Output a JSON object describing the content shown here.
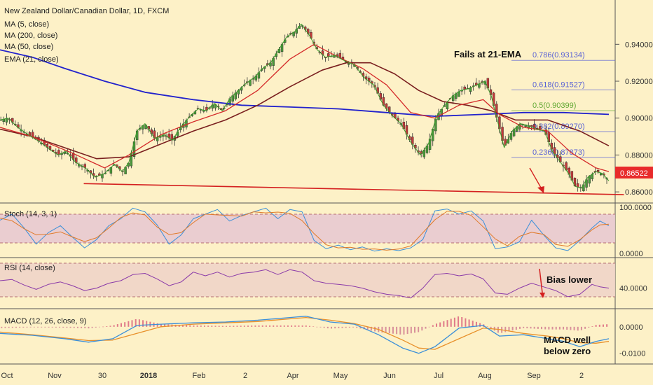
{
  "chart_data": {
    "type": "line",
    "title": "New Zealand Dollar/Canadian Dollar, 1D, FXCM",
    "x_ticks": [
      "Oct",
      "Nov",
      "30",
      "2018",
      "Feb",
      "2",
      "Apr",
      "May",
      "Jun",
      "Jul",
      "Aug",
      "Sep",
      "2"
    ],
    "price_panel": {
      "y_ticks": [
        "0.94000",
        "0.92000",
        "0.90000",
        "0.88000",
        "0.86000"
      ],
      "ylim": [
        0.8555,
        0.9625
      ],
      "last_price": "0.86522",
      "legend": [
        "MA (5, close)",
        "MA (200, close)",
        "MA (50, close)",
        "EMA (21, close)"
      ],
      "price_series": [
        [
          0,
          0.899
        ],
        [
          10,
          0.9
        ],
        [
          22,
          0.895
        ],
        [
          35,
          0.891
        ],
        [
          50,
          0.887
        ],
        [
          62,
          0.883
        ],
        [
          72,
          0.88
        ],
        [
          82,
          0.882
        ],
        [
          94,
          0.876
        ],
        [
          106,
          0.873
        ],
        [
          118,
          0.868
        ],
        [
          130,
          0.87
        ],
        [
          142,
          0.875
        ],
        [
          152,
          0.871
        ],
        [
          160,
          0.876
        ],
        [
          170,
          0.893
        ],
        [
          180,
          0.897
        ],
        [
          192,
          0.889
        ],
        [
          204,
          0.891
        ],
        [
          214,
          0.888
        ],
        [
          224,
          0.895
        ],
        [
          236,
          0.901
        ],
        [
          246,
          0.905
        ],
        [
          256,
          0.904
        ],
        [
          266,
          0.908
        ],
        [
          276,
          0.904
        ],
        [
          286,
          0.911
        ],
        [
          296,
          0.915
        ],
        [
          306,
          0.919
        ],
        [
          316,
          0.922
        ],
        [
          326,
          0.927
        ],
        [
          336,
          0.93
        ],
        [
          346,
          0.937
        ],
        [
          356,
          0.944
        ],
        [
          366,
          0.947
        ],
        [
          374,
          0.951
        ],
        [
          384,
          0.945
        ],
        [
          394,
          0.937
        ],
        [
          404,
          0.933
        ],
        [
          416,
          0.934
        ],
        [
          428,
          0.931
        ],
        [
          440,
          0.929
        ],
        [
          452,
          0.922
        ],
        [
          464,
          0.918
        ],
        [
          476,
          0.907
        ],
        [
          488,
          0.901
        ],
        [
          498,
          0.897
        ],
        [
          510,
          0.887
        ],
        [
          522,
          0.88
        ],
        [
          532,
          0.886
        ],
        [
          542,
          0.901
        ],
        [
          552,
          0.907
        ],
        [
          562,
          0.912
        ],
        [
          572,
          0.915
        ],
        [
          582,
          0.916
        ],
        [
          592,
          0.918
        ],
        [
          602,
          0.92
        ],
        [
          610,
          0.912
        ],
        [
          618,
          0.898
        ],
        [
          626,
          0.884
        ],
        [
          636,
          0.893
        ],
        [
          646,
          0.897
        ],
        [
          656,
          0.896
        ],
        [
          666,
          0.894
        ],
        [
          676,
          0.893
        ],
        [
          686,
          0.882
        ],
        [
          696,
          0.876
        ],
        [
          706,
          0.87
        ],
        [
          714,
          0.863
        ],
        [
          722,
          0.862
        ],
        [
          730,
          0.868
        ],
        [
          740,
          0.871
        ],
        [
          748,
          0.87
        ],
        [
          756,
          0.866
        ]
      ],
      "ma200": [
        [
          0,
          0.937
        ],
        [
          40,
          0.933
        ],
        [
          80,
          0.927
        ],
        [
          130,
          0.92
        ],
        [
          180,
          0.914
        ],
        [
          240,
          0.91
        ],
        [
          300,
          0.907
        ],
        [
          360,
          0.906
        ],
        [
          420,
          0.905
        ],
        [
          480,
          0.903
        ],
        [
          540,
          0.901
        ],
        [
          600,
          0.902
        ],
        [
          650,
          0.903
        ],
        [
          700,
          0.903
        ],
        [
          756,
          0.902
        ]
      ],
      "ma50": [
        [
          0,
          0.894
        ],
        [
          40,
          0.89
        ],
        [
          80,
          0.884
        ],
        [
          120,
          0.878
        ],
        [
          160,
          0.879
        ],
        [
          200,
          0.886
        ],
        [
          240,
          0.893
        ],
        [
          280,
          0.899
        ],
        [
          320,
          0.907
        ],
        [
          360,
          0.917
        ],
        [
          400,
          0.926
        ],
        [
          430,
          0.93
        ],
        [
          460,
          0.93
        ],
        [
          490,
          0.924
        ],
        [
          520,
          0.915
        ],
        [
          550,
          0.909
        ],
        [
          580,
          0.907
        ],
        [
          610,
          0.904
        ],
        [
          640,
          0.899
        ],
        [
          680,
          0.899
        ],
        [
          720,
          0.893
        ],
        [
          756,
          0.885
        ]
      ],
      "ema21": [
        [
          0,
          0.895
        ],
        [
          40,
          0.89
        ],
        [
          90,
          0.881
        ],
        [
          130,
          0.873
        ],
        [
          160,
          0.88
        ],
        [
          200,
          0.891
        ],
        [
          240,
          0.898
        ],
        [
          280,
          0.904
        ],
        [
          320,
          0.915
        ],
        [
          360,
          0.932
        ],
        [
          390,
          0.94
        ],
        [
          420,
          0.933
        ],
        [
          450,
          0.927
        ],
        [
          480,
          0.918
        ],
        [
          510,
          0.903
        ],
        [
          540,
          0.9
        ],
        [
          570,
          0.907
        ],
        [
          600,
          0.91
        ],
        [
          620,
          0.902
        ],
        [
          650,
          0.895
        ],
        [
          680,
          0.893
        ],
        [
          710,
          0.881
        ],
        [
          740,
          0.873
        ],
        [
          756,
          0.871
        ]
      ],
      "support_line": [
        [
          104,
          0.8645
        ],
        [
          775,
          0.8585
        ]
      ],
      "fib_levels": [
        {
          "label": "0.786(0.93134)",
          "value": 0.9313,
          "color": "#5961d6"
        },
        {
          "label": "0.618(0.91527)",
          "value": 0.9153,
          "color": "#5961d6"
        },
        {
          "label": "0.5(0.90399)",
          "value": 0.904,
          "color": "#62a833"
        },
        {
          "label": "0.382(0.89270)",
          "value": 0.8927,
          "color": "#5961d6"
        },
        {
          "label": "0.236(0.87873)",
          "value": 0.8787,
          "color": "#5961d6"
        }
      ],
      "annotation": "Fails at 21-EMA"
    },
    "stoch_panel": {
      "legend": "Stoch (14, 3, 1)",
      "y_ticks": [
        "100.0000",
        "0.0000"
      ],
      "ylim": [
        0,
        100
      ],
      "band": [
        20,
        80
      ],
      "k_series": [
        [
          0,
          72
        ],
        [
          15,
          85
        ],
        [
          30,
          55
        ],
        [
          45,
          20
        ],
        [
          60,
          45
        ],
        [
          75,
          60
        ],
        [
          90,
          35
        ],
        [
          105,
          12
        ],
        [
          120,
          30
        ],
        [
          135,
          60
        ],
        [
          150,
          75
        ],
        [
          165,
          98
        ],
        [
          180,
          90
        ],
        [
          195,
          62
        ],
        [
          210,
          20
        ],
        [
          225,
          40
        ],
        [
          240,
          75
        ],
        [
          255,
          85
        ],
        [
          270,
          95
        ],
        [
          285,
          70
        ],
        [
          300,
          82
        ],
        [
          315,
          90
        ],
        [
          330,
          98
        ],
        [
          345,
          75
        ],
        [
          360,
          95
        ],
        [
          375,
          90
        ],
        [
          390,
          28
        ],
        [
          405,
          10
        ],
        [
          420,
          18
        ],
        [
          435,
          8
        ],
        [
          450,
          14
        ],
        [
          465,
          5
        ],
        [
          480,
          10
        ],
        [
          495,
          6
        ],
        [
          510,
          12
        ],
        [
          525,
          30
        ],
        [
          540,
          92
        ],
        [
          555,
          96
        ],
        [
          570,
          85
        ],
        [
          585,
          92
        ],
        [
          600,
          70
        ],
        [
          615,
          10
        ],
        [
          630,
          14
        ],
        [
          645,
          25
        ],
        [
          660,
          72
        ],
        [
          675,
          40
        ],
        [
          690,
          12
        ],
        [
          705,
          6
        ],
        [
          720,
          28
        ],
        [
          735,
          55
        ],
        [
          745,
          70
        ],
        [
          756,
          60
        ]
      ]
    },
    "rsi_panel": {
      "legend": "RSI (14, close)",
      "y_ticks": [
        "40.0000"
      ],
      "ylim": [
        10,
        85
      ],
      "band": [
        30,
        70
      ],
      "series": [
        [
          0,
          52
        ],
        [
          15,
          54
        ],
        [
          30,
          45
        ],
        [
          45,
          38
        ],
        [
          60,
          46
        ],
        [
          75,
          50
        ],
        [
          90,
          44
        ],
        [
          105,
          36
        ],
        [
          120,
          40
        ],
        [
          135,
          48
        ],
        [
          150,
          52
        ],
        [
          165,
          62
        ],
        [
          180,
          64
        ],
        [
          195,
          55
        ],
        [
          210,
          44
        ],
        [
          225,
          50
        ],
        [
          240,
          66
        ],
        [
          255,
          60
        ],
        [
          270,
          66
        ],
        [
          285,
          58
        ],
        [
          300,
          64
        ],
        [
          315,
          66
        ],
        [
          330,
          70
        ],
        [
          345,
          62
        ],
        [
          360,
          70
        ],
        [
          375,
          66
        ],
        [
          390,
          52
        ],
        [
          405,
          48
        ],
        [
          420,
          46
        ],
        [
          435,
          44
        ],
        [
          450,
          40
        ],
        [
          465,
          34
        ],
        [
          480,
          30
        ],
        [
          495,
          28
        ],
        [
          510,
          24
        ],
        [
          525,
          40
        ],
        [
          540,
          62
        ],
        [
          555,
          64
        ],
        [
          570,
          60
        ],
        [
          585,
          63
        ],
        [
          600,
          55
        ],
        [
          615,
          32
        ],
        [
          630,
          30
        ],
        [
          645,
          40
        ],
        [
          660,
          48
        ],
        [
          675,
          42
        ],
        [
          690,
          36
        ],
        [
          705,
          26
        ],
        [
          720,
          30
        ],
        [
          735,
          46
        ],
        [
          745,
          42
        ],
        [
          756,
          40
        ]
      ],
      "annotation": "Bias lower"
    },
    "macd_panel": {
      "legend": "MACD (12, 26, close, 9)",
      "y_ticks": [
        "0.0000",
        "-0.0100"
      ],
      "ylim": [
        -0.0135,
        0.0055
      ],
      "macd": [
        [
          0,
          -0.0025
        ],
        [
          40,
          -0.0032
        ],
        [
          80,
          -0.0045
        ],
        [
          110,
          -0.0058
        ],
        [
          140,
          -0.0045
        ],
        [
          170,
          0.0005
        ],
        [
          200,
          0.001
        ],
        [
          240,
          0.0015
        ],
        [
          280,
          0.0018
        ],
        [
          320,
          0.0025
        ],
        [
          360,
          0.0035
        ],
        [
          380,
          0.004
        ],
        [
          410,
          0.0018
        ],
        [
          440,
          0.001
        ],
        [
          470,
          -0.003
        ],
        [
          500,
          -0.008
        ],
        [
          520,
          -0.01
        ],
        [
          540,
          -0.0075
        ],
        [
          570,
          -0.0005
        ],
        [
          600,
          0.0005
        ],
        [
          620,
          -0.0035
        ],
        [
          650,
          -0.003
        ],
        [
          680,
          -0.0045
        ],
        [
          700,
          -0.0055
        ],
        [
          720,
          -0.0075
        ],
        [
          740,
          -0.0055
        ],
        [
          756,
          -0.0045
        ]
      ],
      "signal": [
        [
          0,
          -0.002
        ],
        [
          40,
          -0.003
        ],
        [
          80,
          -0.0042
        ],
        [
          110,
          -0.0052
        ],
        [
          140,
          -0.005
        ],
        [
          170,
          -0.0025
        ],
        [
          200,
          0.0
        ],
        [
          240,
          0.001
        ],
        [
          280,
          0.0015
        ],
        [
          320,
          0.002
        ],
        [
          360,
          0.003
        ],
        [
          380,
          0.0035
        ],
        [
          410,
          0.0025
        ],
        [
          440,
          0.0012
        ],
        [
          470,
          -0.001
        ],
        [
          500,
          -0.005
        ],
        [
          520,
          -0.008
        ],
        [
          540,
          -0.0085
        ],
        [
          570,
          -0.0045
        ],
        [
          600,
          -0.0005
        ],
        [
          620,
          -0.001
        ],
        [
          650,
          -0.0025
        ],
        [
          680,
          -0.0035
        ],
        [
          700,
          -0.0045
        ],
        [
          720,
          -0.006
        ],
        [
          740,
          -0.0062
        ],
        [
          756,
          -0.0055
        ]
      ],
      "annotation_line1": "MACD well",
      "annotation_line2": "below zero"
    }
  }
}
